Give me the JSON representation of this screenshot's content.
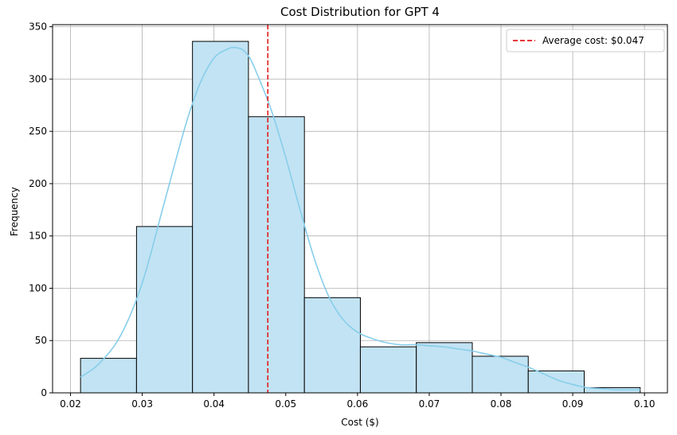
{
  "chart_data": {
    "type": "histogram",
    "title": "Cost Distribution for GPT 4",
    "xlabel": "Cost ($)",
    "ylabel": "Frequency",
    "xlim": [
      0.0175,
      0.1032
    ],
    "ylim": [
      0,
      352
    ],
    "xticks": [
      0.02,
      0.03,
      0.04,
      0.05,
      0.06,
      0.07,
      0.08,
      0.09,
      0.1
    ],
    "xtick_labels": [
      "0.02",
      "0.03",
      "0.04",
      "0.05",
      "0.06",
      "0.07",
      "0.08",
      "0.09",
      "0.10"
    ],
    "yticks": [
      0,
      50,
      100,
      150,
      200,
      250,
      300,
      350
    ],
    "ytick_labels": [
      "0",
      "50",
      "100",
      "150",
      "200",
      "250",
      "300",
      "350"
    ],
    "grid": true,
    "bins": [
      {
        "start": 0.0214,
        "end": 0.0292,
        "count": 33
      },
      {
        "start": 0.0292,
        "end": 0.037,
        "count": 159
      },
      {
        "start": 0.037,
        "end": 0.0448,
        "count": 336
      },
      {
        "start": 0.0448,
        "end": 0.0526,
        "count": 264
      },
      {
        "start": 0.0526,
        "end": 0.0604,
        "count": 91
      },
      {
        "start": 0.0604,
        "end": 0.0682,
        "count": 44
      },
      {
        "start": 0.0682,
        "end": 0.076,
        "count": 48
      },
      {
        "start": 0.076,
        "end": 0.0838,
        "count": 35
      },
      {
        "start": 0.0838,
        "end": 0.0916,
        "count": 21
      },
      {
        "start": 0.0916,
        "end": 0.0994,
        "count": 5
      }
    ],
    "kde": {
      "x": [
        0.0214,
        0.024,
        0.027,
        0.03,
        0.033,
        0.036,
        0.038,
        0.04,
        0.042,
        0.043,
        0.044,
        0.045,
        0.046,
        0.048,
        0.05,
        0.052,
        0.054,
        0.056,
        0.058,
        0.06,
        0.062,
        0.064,
        0.066,
        0.068,
        0.07,
        0.072,
        0.074,
        0.076,
        0.078,
        0.08,
        0.082,
        0.084,
        0.086,
        0.088,
        0.09,
        0.092,
        0.094,
        0.096,
        0.098,
        0.0994
      ],
      "y": [
        15,
        28,
        55,
        105,
        180,
        255,
        295,
        320,
        329,
        330,
        328,
        320,
        305,
        270,
        225,
        175,
        128,
        92,
        70,
        58,
        52,
        48,
        46,
        46,
        45,
        44,
        42,
        40,
        37,
        34,
        29,
        24,
        18,
        12,
        8,
        5,
        4,
        3,
        3,
        3
      ]
    },
    "avg_line": {
      "x": 0.0475,
      "label": "Average cost: $0.047"
    },
    "legend": {
      "position": "top-right",
      "entries": [
        "Average cost: $0.047"
      ]
    },
    "colors": {
      "bar_fill": "#c2e3f3",
      "bar_edge": "#000000",
      "kde_line": "#87ceeb",
      "avg_line": "#e31a1c",
      "grid": "#b0b0b0"
    }
  }
}
